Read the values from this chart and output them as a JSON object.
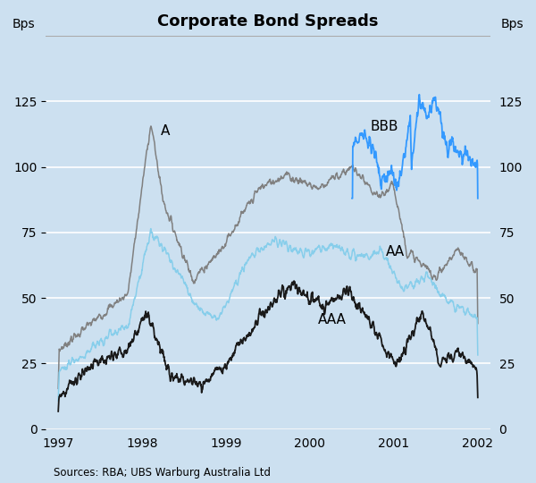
{
  "title": "Corporate Bond Spreads",
  "ylabel_left": "Bps",
  "ylabel_right": "Bps",
  "source": "Sources: RBA; UBS Warburg Australia Ltd",
  "background_color": "#cce0f0",
  "plot_background": "#cce0f0",
  "ylim": [
    0,
    150
  ],
  "yticks": [
    0,
    25,
    50,
    75,
    100,
    125
  ],
  "xticks": [
    1997,
    1998,
    1999,
    2000,
    2001,
    2002
  ],
  "xlim": [
    1996.85,
    2002.15
  ],
  "series_colors": [
    "#1a1a1a",
    "#87ceeb",
    "#808080",
    "#3399ff"
  ],
  "ann_A_x": 1998.22,
  "ann_A_y": 112,
  "ann_AA_x": 2000.9,
  "ann_AA_y": 66,
  "ann_AAA_x": 2000.1,
  "ann_AAA_y": 40,
  "ann_BBB_x": 2000.72,
  "ann_BBB_y": 114
}
